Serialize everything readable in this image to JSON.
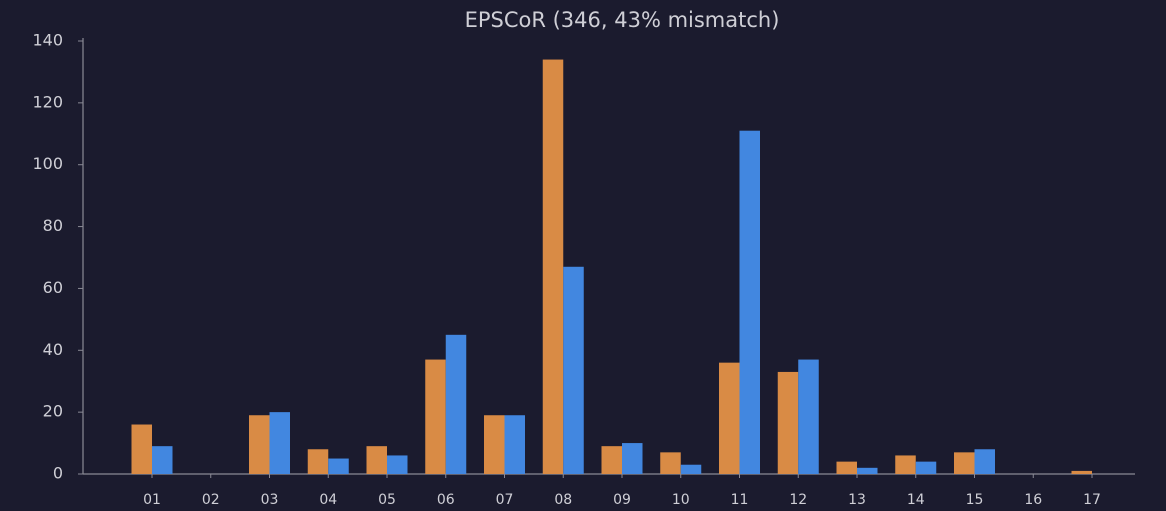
{
  "chart_data": {
    "type": "bar",
    "title": "EPSCoR (346, 43% mismatch)",
    "categories": [
      "01",
      "02",
      "03",
      "04",
      "05",
      "06",
      "07",
      "08",
      "09",
      "10",
      "11",
      "12",
      "13",
      "14",
      "15",
      "16",
      "17"
    ],
    "series": [
      {
        "color": "#d98b45",
        "values": [
          16,
          0,
          19,
          8,
          9,
          37,
          19,
          134,
          9,
          7,
          36,
          33,
          4,
          6,
          7,
          0,
          1
        ]
      },
      {
        "color": "#4287e0",
        "values": [
          9,
          0,
          20,
          5,
          6,
          45,
          19,
          67,
          10,
          3,
          111,
          37,
          2,
          4,
          8,
          0,
          0
        ]
      }
    ],
    "ylim": [
      0,
      140
    ],
    "yticks": [
      0,
      20,
      40,
      60,
      80,
      100,
      120,
      140
    ],
    "grid": false
  }
}
